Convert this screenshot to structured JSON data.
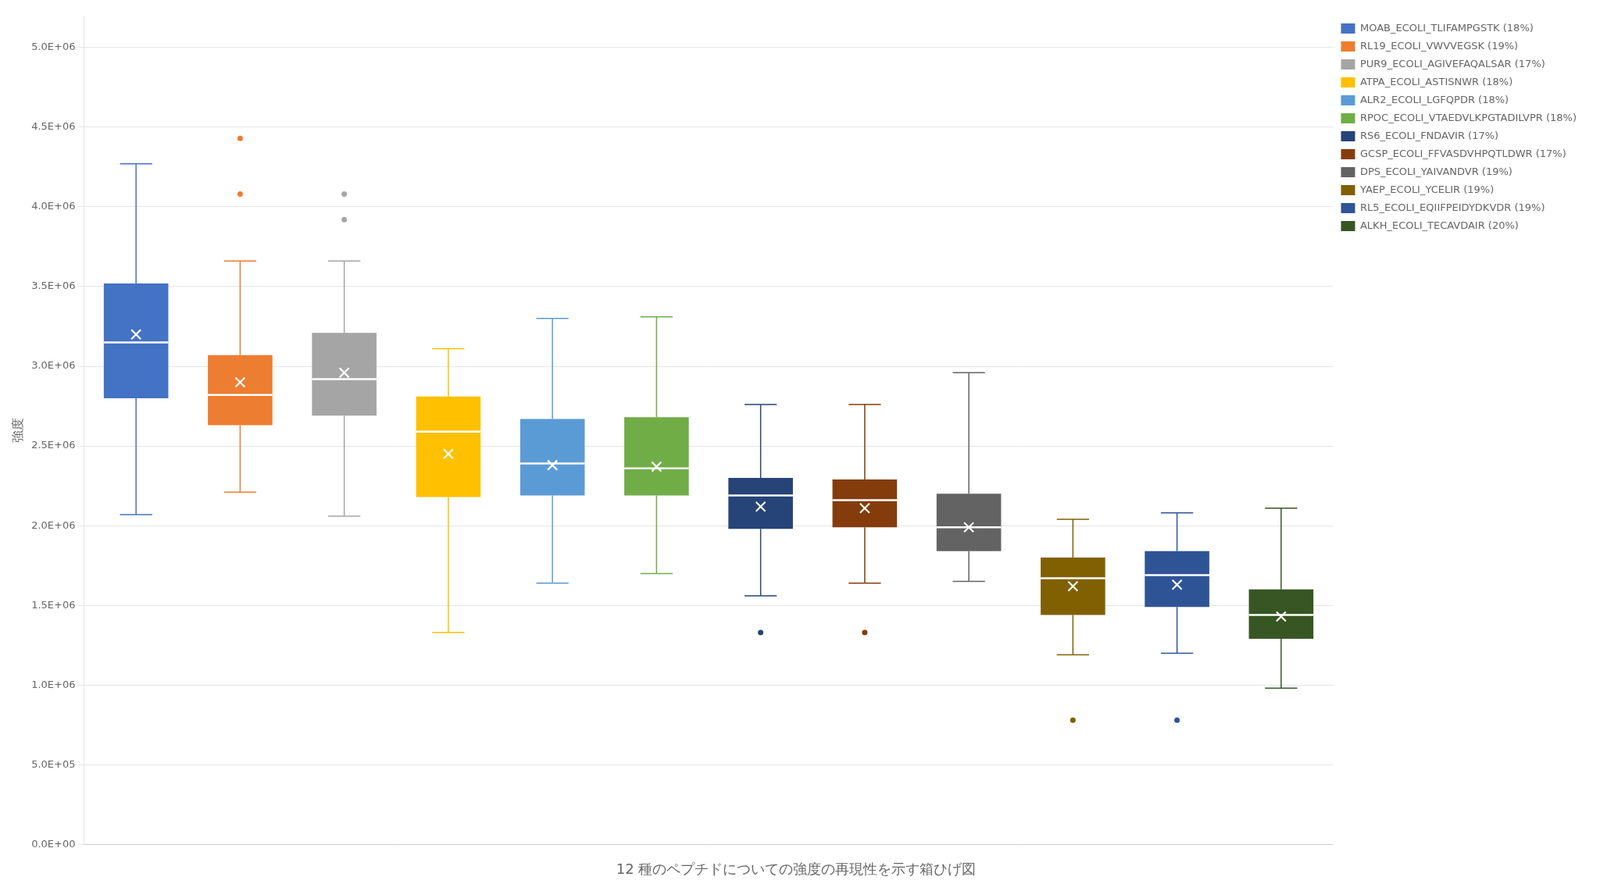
{
  "chart_data": {
    "type": "box",
    "title": "12 種のペプチドについての強度の再現性を示す箱ひげ図",
    "ylabel": "強度",
    "ylim": [
      0,
      5200000
    ],
    "yticks": [
      {
        "value": 0,
        "label": "0.0E+00"
      },
      {
        "value": 500000,
        "label": "5.0E+05"
      },
      {
        "value": 1000000,
        "label": "1.0E+06"
      },
      {
        "value": 1500000,
        "label": "1.5E+06"
      },
      {
        "value": 2000000,
        "label": "2.0E+06"
      },
      {
        "value": 2500000,
        "label": "2.5E+06"
      },
      {
        "value": 3000000,
        "label": "3.0E+06"
      },
      {
        "value": 3500000,
        "label": "3.5E+06"
      },
      {
        "value": 4000000,
        "label": "4.0E+06"
      },
      {
        "value": 4500000,
        "label": "4.5E+06"
      },
      {
        "value": 5000000,
        "label": "5.0E+06"
      }
    ],
    "grid": true,
    "legend": "upper right",
    "tick_labels": "y",
    "series": [
      {
        "name": "MOAB_ECOLI_TLIFAMPGSTK (18%)",
        "color": "#4472C4",
        "q1": 2800000,
        "median": 3150000,
        "q3": 3520000,
        "mean": 3200000,
        "whisker_low": 2070000,
        "whisker_high": 4270000,
        "outliers": []
      },
      {
        "name": "RL19_ECOLI_VWVVEGSK (19%)",
        "color": "#ED7D31",
        "q1": 2630000,
        "median": 2820000,
        "q3": 3070000,
        "mean": 2900000,
        "whisker_low": 2210000,
        "whisker_high": 3660000,
        "outliers": [
          4080000,
          4430000
        ]
      },
      {
        "name": "PUR9_ECOLI_AGIVEFAQALSAR (17%)",
        "color": "#A5A5A5",
        "q1": 2690000,
        "median": 2920000,
        "q3": 3210000,
        "mean": 2960000,
        "whisker_low": 2060000,
        "whisker_high": 3660000,
        "outliers": [
          3920000,
          4080000
        ]
      },
      {
        "name": "ATPA_ECOLI_ASTISNWR (18%)",
        "color": "#FFC000",
        "q1": 2180000,
        "median": 2590000,
        "q3": 2810000,
        "mean": 2450000,
        "whisker_low": 1330000,
        "whisker_high": 3110000,
        "outliers": []
      },
      {
        "name": "ALR2_ECOLI_LGFQPDR (18%)",
        "color": "#5B9BD5",
        "q1": 2190000,
        "median": 2390000,
        "q3": 2670000,
        "mean": 2380000,
        "whisker_low": 1640000,
        "whisker_high": 3300000,
        "outliers": []
      },
      {
        "name": "RPOC_ECOLI_VTAEDVLKPGTADILVPR (18%)",
        "color": "#70AD47",
        "q1": 2190000,
        "median": 2360000,
        "q3": 2680000,
        "mean": 2370000,
        "whisker_low": 1700000,
        "whisker_high": 3310000,
        "outliers": []
      },
      {
        "name": "RS6_ECOLI_FNDAVIR (17%)",
        "color": "#264478",
        "q1": 1980000,
        "median": 2190000,
        "q3": 2300000,
        "mean": 2120000,
        "whisker_low": 1560000,
        "whisker_high": 2760000,
        "outliers": [
          1330000
        ]
      },
      {
        "name": "GCSP_ECOLI_FFVASDVHPQTLDWR (17%)",
        "color": "#843C0C",
        "q1": 1990000,
        "median": 2160000,
        "q3": 2290000,
        "mean": 2110000,
        "whisker_low": 1640000,
        "whisker_high": 2760000,
        "outliers": [
          1330000
        ]
      },
      {
        "name": "DPS_ECOLI_YAIVANDVR (19%)",
        "color": "#636363",
        "q1": 1840000,
        "median": 1990000,
        "q3": 2200000,
        "mean": 1990000,
        "whisker_low": 1650000,
        "whisker_high": 2960000,
        "outliers": []
      },
      {
        "name": "YAEP_ECOLI_YCELIR (19%)",
        "color": "#806000",
        "q1": 1440000,
        "median": 1670000,
        "q3": 1800000,
        "mean": 1620000,
        "whisker_low": 1190000,
        "whisker_high": 2040000,
        "outliers": [
          780000
        ]
      },
      {
        "name": "RL5_ECOLI_EQIIFPEIDYDKVDR (19%)",
        "color": "#2F5496",
        "q1": 1490000,
        "median": 1690000,
        "q3": 1840000,
        "mean": 1630000,
        "whisker_low": 1200000,
        "whisker_high": 2080000,
        "outliers": [
          780000
        ]
      },
      {
        "name": "ALKH_ECOLI_TECAVDAIR (20%)",
        "color": "#375623",
        "q1": 1290000,
        "median": 1440000,
        "q3": 1600000,
        "mean": 1430000,
        "whisker_low": 980000,
        "whisker_high": 2110000,
        "outliers": []
      }
    ]
  }
}
